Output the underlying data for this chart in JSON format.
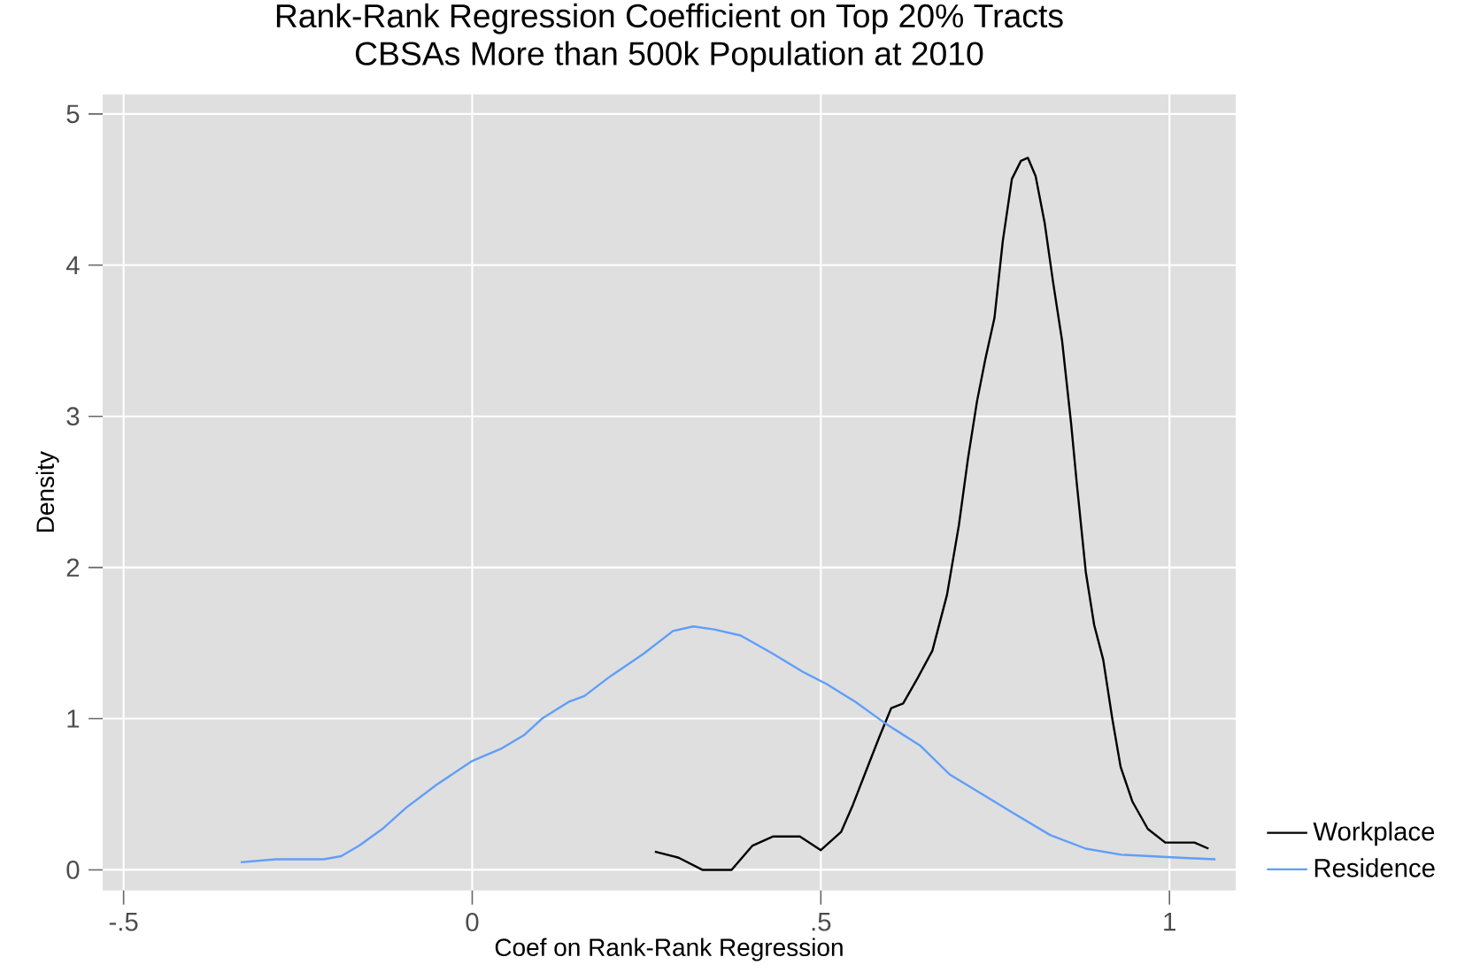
{
  "chart_data": {
    "type": "line",
    "title": "Rank-Rank Regression Coefficient on Top 20% Tracts",
    "subtitle": "CBSAs More than 500k Population at 2010",
    "xlabel": "Coef on Rank-Rank Regression",
    "ylabel": "Density",
    "xlim": [
      -0.53,
      1.095
    ],
    "ylim": [
      -0.136,
      5.13
    ],
    "xticks": [
      {
        "value": -0.5,
        "label": "-.5"
      },
      0,
      {
        "value": 0.5,
        "label": ".5"
      },
      1
    ],
    "yticks": [
      0,
      1,
      2,
      3,
      4,
      5
    ],
    "grid": true,
    "legend": "bottom right",
    "series": [
      {
        "name": "Workplace",
        "color": "#000000",
        "x": [
          0.262,
          0.296,
          0.33,
          0.372,
          0.402,
          0.431,
          0.47,
          0.5,
          0.529,
          0.546,
          0.567,
          0.584,
          0.601,
          0.618,
          0.639,
          0.66,
          0.681,
          0.698,
          0.711,
          0.724,
          0.736,
          0.749,
          0.761,
          0.774,
          0.787,
          0.797,
          0.808,
          0.821,
          0.833,
          0.846,
          0.859,
          0.867,
          0.88,
          0.892,
          0.905,
          0.918,
          0.93,
          0.947,
          0.969,
          0.994,
          1.015,
          1.036,
          1.056
        ],
        "values": [
          0.12,
          0.08,
          0,
          0,
          0.16,
          0.22,
          0.22,
          0.13,
          0.25,
          0.43,
          0.68,
          0.88,
          1.07,
          1.1,
          1.27,
          1.45,
          1.82,
          2.28,
          2.72,
          3.1,
          3.38,
          3.65,
          4.16,
          4.57,
          4.69,
          4.71,
          4.59,
          4.28,
          3.89,
          3.5,
          2.95,
          2.56,
          1.97,
          1.62,
          1.39,
          1.0,
          0.68,
          0.45,
          0.27,
          0.18,
          0.18,
          0.18,
          0.14
        ]
      },
      {
        "name": "Residence",
        "color": "#5f9ef9",
        "x": [
          -0.332,
          -0.281,
          -0.213,
          -0.188,
          -0.162,
          -0.129,
          -0.095,
          -0.052,
          0,
          0.041,
          0.074,
          0.1,
          0.138,
          0.161,
          0.195,
          0.246,
          0.288,
          0.317,
          0.347,
          0.385,
          0.431,
          0.474,
          0.508,
          0.55,
          0.592,
          0.643,
          0.685,
          0.728,
          0.778,
          0.829,
          0.88,
          0.931,
          0.973,
          1.015,
          1.066
        ],
        "values": [
          0.05,
          0.07,
          0.07,
          0.09,
          0.16,
          0.27,
          0.41,
          0.56,
          0.72,
          0.8,
          0.89,
          1.0,
          1.11,
          1.15,
          1.27,
          1.43,
          1.58,
          1.61,
          1.59,
          1.55,
          1.43,
          1.31,
          1.23,
          1.11,
          0.97,
          0.82,
          0.63,
          0.51,
          0.37,
          0.23,
          0.14,
          0.1,
          0.09,
          0.08,
          0.07
        ]
      }
    ]
  }
}
